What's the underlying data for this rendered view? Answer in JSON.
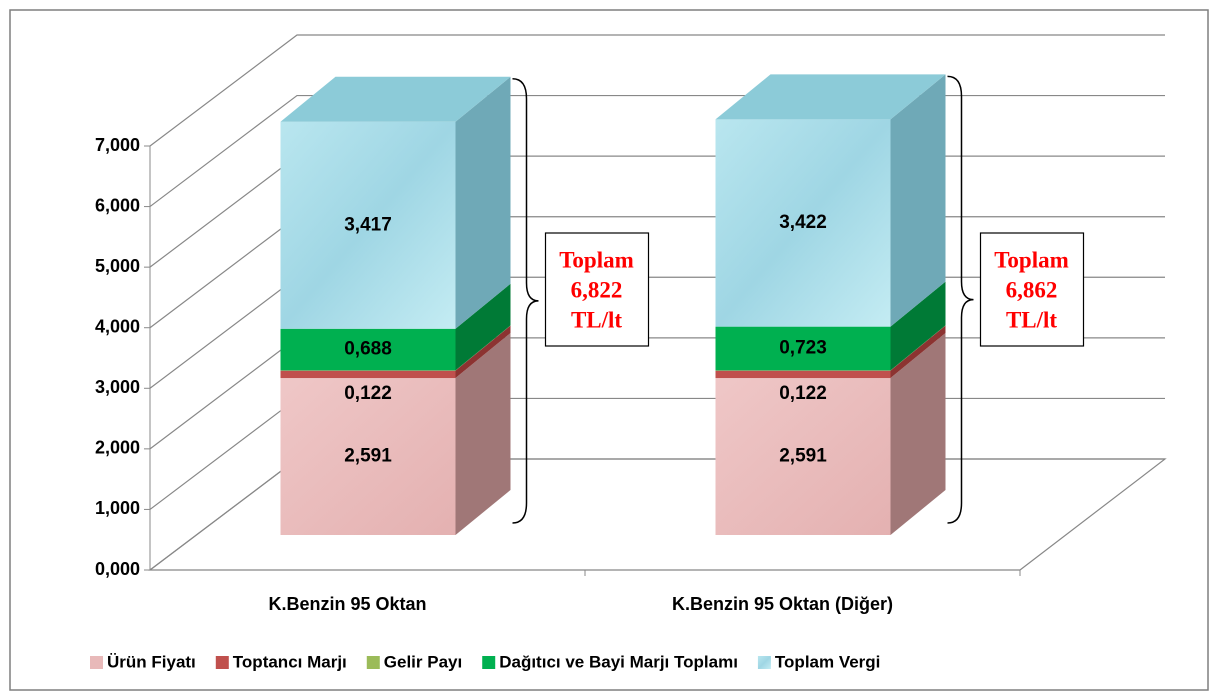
{
  "chart_data": {
    "type": "bar3d_stacked",
    "categories": [
      "K.Benzin 95 Oktan",
      "K.Benzin 95 Oktan (Diğer)"
    ],
    "series": [
      {
        "name": "Ürün Fiyatı",
        "color": "#e8b9b9",
        "side": "#a07777",
        "values": [
          2.591,
          2.591
        ],
        "value_labels": [
          "2,591",
          "2,591"
        ]
      },
      {
        "name": "Toptancı Marjı",
        "color": "#c0504d",
        "side": "#8c3331",
        "values": [
          0.122,
          0.122
        ],
        "value_labels": [
          "0,122",
          "0,122"
        ]
      },
      {
        "name": "Gelir Payı",
        "color": "#9bbb59",
        "side": "#6f8a3c",
        "values": [
          0.004,
          0.004
        ]
      },
      {
        "name": "Dağıtıcı ve Bayi Marjı Toplamı",
        "color": "#00b050",
        "side": "#007a36",
        "values": [
          0.688,
          0.723
        ],
        "value_labels": [
          "0,688",
          "0,723"
        ]
      },
      {
        "name": "Toplam Vergi",
        "color": "#a8dde8",
        "side": "#6fa9b7",
        "values": [
          3.417,
          3.422
        ],
        "value_labels": [
          "3,417",
          "3,422"
        ]
      }
    ],
    "annotations": [
      {
        "lines": [
          "Toplam",
          "6,822",
          "TL/lt"
        ]
      },
      {
        "lines": [
          "Toplam",
          "6,862",
          "TL/lt"
        ]
      }
    ],
    "ylim": [
      0,
      7
    ],
    "yticks": [
      {
        "value": 0,
        "label": "0,000"
      },
      {
        "value": 1,
        "label": "1,000"
      },
      {
        "value": 2,
        "label": "2,000"
      },
      {
        "value": 3,
        "label": "3,000"
      },
      {
        "value": 4,
        "label": "4,000"
      },
      {
        "value": 5,
        "label": "5,000"
      },
      {
        "value": 6,
        "label": "6,000"
      },
      {
        "value": 7,
        "label": "7,000"
      }
    ],
    "grid": true,
    "legend": "bottom"
  }
}
